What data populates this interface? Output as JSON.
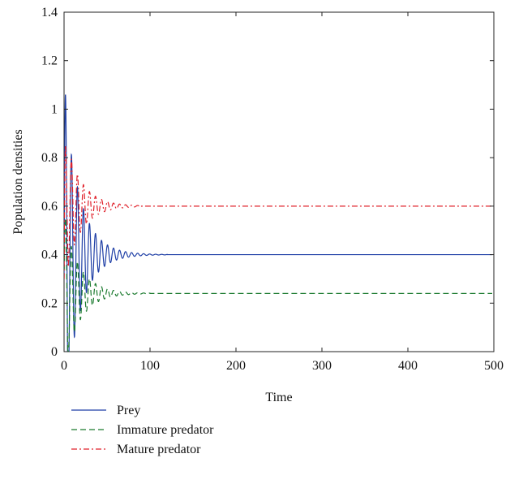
{
  "chart_data": {
    "type": "line",
    "title": "",
    "xlabel": "Time",
    "ylabel": "Population densities",
    "xlim": [
      0,
      500
    ],
    "ylim": [
      0,
      1.4
    ],
    "x_ticks": [
      0,
      100,
      200,
      300,
      400,
      500
    ],
    "x_tick_labels": [
      "0",
      "100",
      "200",
      "300",
      "400",
      "500"
    ],
    "y_ticks": [
      0,
      0.2,
      0.4,
      0.6,
      0.8,
      1.0,
      1.2,
      1.4
    ],
    "y_tick_labels": [
      "0",
      "0.2",
      "0.4",
      "0.6",
      "0.8",
      "1",
      "1.2",
      "1.4"
    ],
    "grid": false,
    "legend_position": "below",
    "series": [
      {
        "name": "Prey",
        "color": "#1f3fa6",
        "style": "solid",
        "initial": 0.3,
        "peak": 1.06,
        "equilibrium": 0.4,
        "oscillation_amplitude": 0.32,
        "oscillation_period": 7.0,
        "decay_time": 18,
        "settle_by": 100
      },
      {
        "name": "Immature predator",
        "color": "#1a7a2e",
        "style": "dashed",
        "initial": 0.3,
        "peak": 0.55,
        "equilibrium": 0.24,
        "oscillation_amplitude": 0.15,
        "oscillation_period": 7.0,
        "decay_time": 18,
        "settle_by": 80
      },
      {
        "name": "Mature predator",
        "color": "#e0202a",
        "style": "dashdot",
        "initial": 0.3,
        "peak": 0.85,
        "equilibrium": 0.6,
        "oscillation_amplitude": 0.15,
        "oscillation_period": 7.0,
        "decay_time": 18,
        "settle_by": 70
      }
    ]
  }
}
